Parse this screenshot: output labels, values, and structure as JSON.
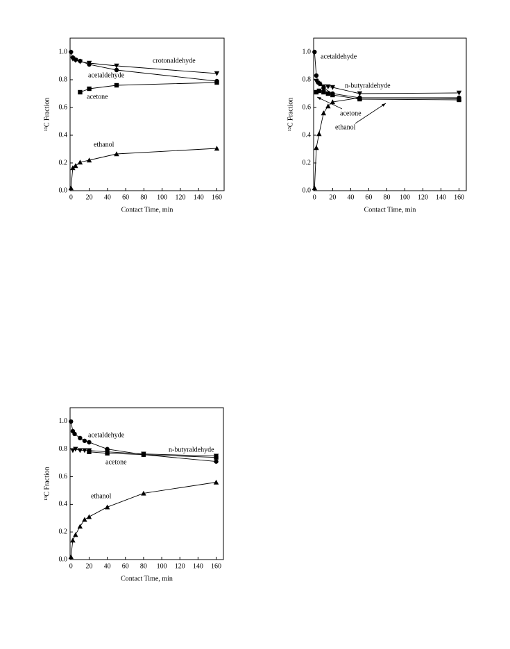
{
  "chart_data": [
    {
      "type": "line",
      "xlabel": "Contact Time,  min",
      "ylabel": "¹³C Fraction",
      "xlim": [
        -1,
        168
      ],
      "ylim": [
        0,
        1.1
      ],
      "xticks": [
        0,
        20,
        40,
        60,
        80,
        100,
        120,
        140,
        160
      ],
      "yticks": [
        {
          "value": 0,
          "label": "0.0"
        },
        0.2,
        0.4,
        0.6,
        0.8,
        {
          "value": 1,
          "label": "1.0"
        }
      ],
      "series": [
        {
          "name": "crotonaldehyde",
          "color": "#000000",
          "marker": "triangle-down",
          "x": [
            2,
            5,
            10,
            20,
            50,
            160
          ],
          "values": [
            0.95,
            0.94,
            0.93,
            0.92,
            0.9,
            0.845
          ]
        },
        {
          "name": "acetaldehyde",
          "color": "#000000",
          "marker": "circle",
          "x": [
            0,
            2,
            5,
            10,
            20,
            50,
            160
          ],
          "values": [
            1.0,
            0.96,
            0.945,
            0.935,
            0.91,
            0.87,
            0.79
          ]
        },
        {
          "name": "acetone",
          "color": "#000000",
          "marker": "square",
          "x": [
            10,
            20,
            50,
            160
          ],
          "values": [
            0.71,
            0.735,
            0.76,
            0.78
          ]
        },
        {
          "name": "ethanol",
          "color": "#000000",
          "marker": "triangle-up",
          "x": [
            0,
            2,
            5,
            10,
            20,
            50,
            160
          ],
          "values": [
            0.02,
            0.165,
            0.18,
            0.205,
            0.22,
            0.265,
            0.305
          ]
        }
      ]
    },
    {
      "type": "line",
      "xlabel": "Contact Time,  min",
      "ylabel": "¹³C Fraction",
      "xlim": [
        -1,
        168
      ],
      "ylim": [
        0,
        1.1
      ],
      "xticks": [
        0,
        20,
        40,
        60,
        80,
        100,
        120,
        140,
        160
      ],
      "yticks": [
        {
          "value": 0,
          "label": "0.0"
        },
        0.2,
        0.4,
        0.6,
        0.8,
        {
          "value": 1,
          "label": "1.0"
        }
      ],
      "series": [
        {
          "name": "acetaldehyde",
          "color": "#000000",
          "marker": "circle",
          "x": [
            0,
            2,
            4,
            6,
            10,
            20,
            50,
            160
          ],
          "values": [
            1.0,
            0.83,
            0.78,
            0.77,
            0.74,
            0.7,
            0.67,
            0.67
          ]
        },
        {
          "name": "n-butyraldehyde",
          "color": "#000000",
          "marker": "triangle-down",
          "x": [
            2,
            5,
            10,
            15,
            20,
            50,
            160
          ],
          "values": [
            0.79,
            0.77,
            0.75,
            0.75,
            0.745,
            0.7,
            0.705
          ]
        },
        {
          "name": "acetone",
          "color": "#000000",
          "marker": "square",
          "x": [
            2,
            5,
            10,
            15,
            20,
            50,
            160
          ],
          "values": [
            0.71,
            0.72,
            0.71,
            0.7,
            0.69,
            0.66,
            0.655
          ]
        },
        {
          "name": "ethanol",
          "color": "#000000",
          "marker": "triangle-up",
          "x": [
            0,
            2,
            5,
            10,
            15,
            20,
            50,
            160
          ],
          "values": [
            0.02,
            0.31,
            0.41,
            0.56,
            0.61,
            0.64,
            0.67,
            0.665
          ]
        }
      ]
    },
    {
      "type": "line",
      "xlabel": "Contact Time,  min",
      "ylabel": "¹³C Fraction",
      "xlim": [
        -1,
        168
      ],
      "ylim": [
        0,
        1.1
      ],
      "xticks": [
        0,
        20,
        40,
        60,
        80,
        100,
        120,
        140,
        160
      ],
      "yticks": [
        {
          "value": 0,
          "label": "0.0"
        },
        0.2,
        0.4,
        0.6,
        0.8,
        {
          "value": 1,
          "label": "1.0"
        }
      ],
      "series": [
        {
          "name": "acetaldehyde",
          "color": "#000000",
          "marker": "circle",
          "x": [
            0,
            2,
            4,
            10,
            15,
            20,
            40,
            80,
            160
          ],
          "values": [
            1.0,
            0.93,
            0.91,
            0.88,
            0.86,
            0.85,
            0.8,
            0.76,
            0.71
          ]
        },
        {
          "name": "n-butyraldehyde",
          "color": "#000000",
          "marker": "triangle-down",
          "x": [
            2,
            5,
            10,
            15,
            20,
            40,
            80,
            160
          ],
          "values": [
            0.79,
            0.8,
            0.79,
            0.79,
            0.79,
            0.78,
            0.765,
            0.75
          ]
        },
        {
          "name": "acetone",
          "color": "#000000",
          "marker": "square",
          "x": [
            20,
            40,
            80,
            160
          ],
          "values": [
            0.78,
            0.77,
            0.76,
            0.74
          ]
        },
        {
          "name": "ethanol",
          "color": "#000000",
          "marker": "triangle-up",
          "x": [
            0,
            2,
            5,
            10,
            15,
            20,
            40,
            80,
            160
          ],
          "values": [
            0.02,
            0.14,
            0.18,
            0.24,
            0.29,
            0.31,
            0.38,
            0.48,
            0.56
          ]
        }
      ]
    }
  ]
}
